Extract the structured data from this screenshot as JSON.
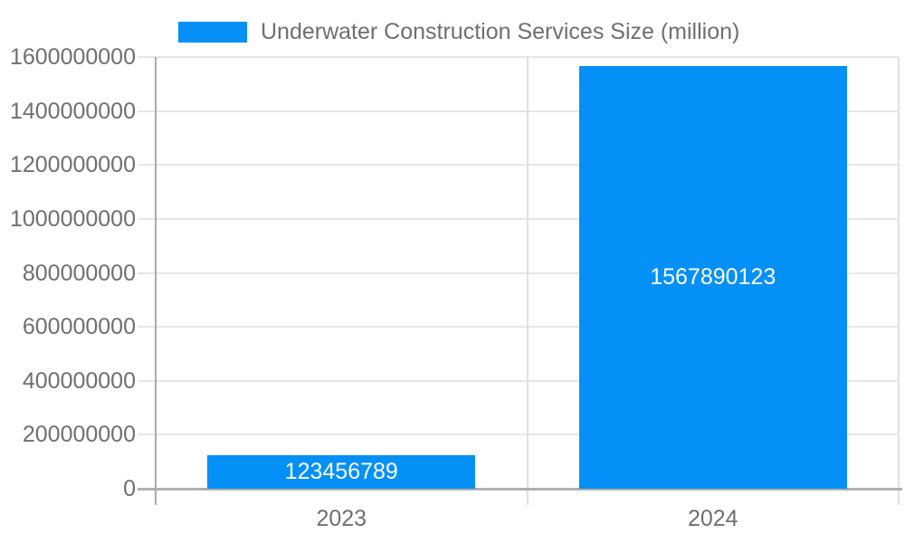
{
  "legend": {
    "label": "Underwater Construction Services Size (million)"
  },
  "colors": {
    "bar": "#0590f7",
    "gridline": "#e6e6e6",
    "category_line": "#e0e0e0",
    "y_axis_line": "#ababab",
    "x_axis_line": "#b0b0b0",
    "tick_text": "#6f6f6f",
    "value_text": "#ffffff",
    "background": "#ffffff"
  },
  "chart_data": {
    "type": "bar",
    "title": "",
    "categories": [
      "2023",
      "2024"
    ],
    "series": [
      {
        "name": "Underwater Construction Services Size (million)",
        "values": [
          123456789,
          1567890123
        ],
        "color": "#0590f7"
      }
    ],
    "value_labels": [
      "123456789",
      "1567890123"
    ],
    "xlabel": "",
    "ylabel": "",
    "ylim": [
      0,
      1600000000
    ],
    "ytick_values": [
      0,
      200000000,
      400000000,
      600000000,
      800000000,
      1000000000,
      1200000000,
      1400000000,
      1600000000
    ],
    "ytick_labels": [
      "0",
      "200000000",
      "400000000",
      "600000000",
      "800000000",
      "1000000000",
      "1200000000",
      "1400000000",
      "1600000000"
    ],
    "grid": true,
    "legend_position": "top",
    "value_label_position": "inside-center"
  }
}
